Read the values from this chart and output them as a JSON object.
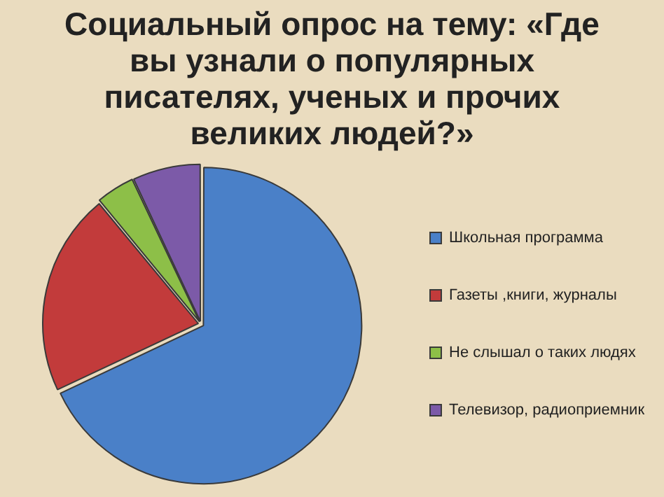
{
  "chart_data": {
    "type": "pie",
    "title": "Социальный опрос на тему: «Где вы узнали о популярных писателях, ученых и прочих великих людей?»",
    "categories": [
      "Школьная программа",
      "Газеты ,книги, журналы",
      "Не слышал о таких людях",
      "Телевизор, радиоприемник"
    ],
    "values": [
      68,
      21,
      4,
      7
    ],
    "colors": [
      "#4a80c8",
      "#c23b3b",
      "#8dbf48",
      "#7c5aa8"
    ],
    "legend": "right"
  }
}
